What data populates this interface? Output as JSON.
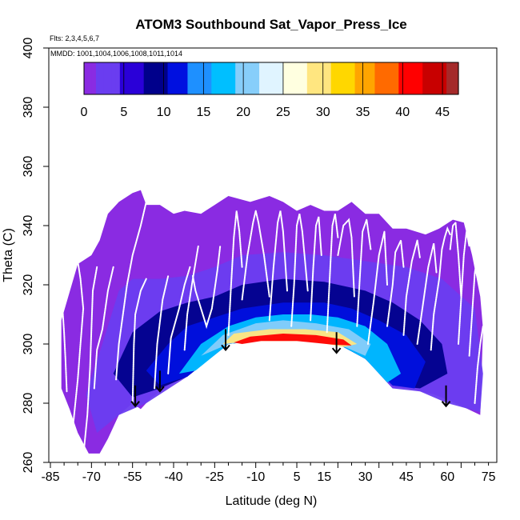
{
  "chart_data": {
    "type": "heatmap",
    "title": "ATOM3 Southbound Sat_Vapor_Press_Ice",
    "flights_note": "Flts: 2,3,4,5,6,7",
    "dates_note": "MMDD: 1001,1004,1006,1008,1011,1014",
    "xlabel": "Latitude (deg N)",
    "ylabel": "Theta (C)",
    "xlim": [
      -85,
      85
    ],
    "ylim": [
      260,
      400
    ],
    "x_ticks": [
      "-85",
      "-70",
      "-55",
      "-40",
      "-25",
      "-10",
      "5",
      "15",
      "30",
      "45",
      "60",
      "75"
    ],
    "y_ticks": [
      "260",
      "280",
      "300",
      "320",
      "340",
      "360",
      "380",
      "400"
    ],
    "colorbar": {
      "range": [
        0,
        47
      ],
      "ticks": [
        "0",
        "5",
        "10",
        "15",
        "20",
        "25",
        "30",
        "35",
        "40",
        "45"
      ],
      "colors": [
        "#8a2be2",
        "#6a3df0",
        "#2a00d8",
        "#00008b",
        "#0010e0",
        "#1e90ff",
        "#00bfff",
        "#87cefa",
        "#e0f4ff",
        "#ffffe0",
        "#ffe680",
        "#ffd700",
        "#ffa500",
        "#ff6a00",
        "#ff0000",
        "#c80000",
        "#a52a2a"
      ]
    },
    "domain_outline": [
      [
        -81,
        290
      ],
      [
        -81,
        308
      ],
      [
        -75,
        327
      ],
      [
        -70,
        330
      ],
      [
        -67,
        335
      ],
      [
        -64,
        344
      ],
      [
        -60,
        348
      ],
      [
        -55,
        351
      ],
      [
        -52,
        352
      ],
      [
        -50,
        347
      ],
      [
        -45,
        347
      ],
      [
        -40,
        344
      ],
      [
        -36,
        345
      ],
      [
        -30,
        344
      ],
      [
        -25,
        347
      ],
      [
        -20,
        350
      ],
      [
        -12,
        348
      ],
      [
        -5,
        350
      ],
      [
        0,
        348
      ],
      [
        5,
        345
      ],
      [
        10,
        347
      ],
      [
        15,
        345
      ],
      [
        20,
        345
      ],
      [
        25,
        348
      ],
      [
        30,
        344
      ],
      [
        35,
        344
      ],
      [
        40,
        339
      ],
      [
        45,
        339
      ],
      [
        52,
        337
      ],
      [
        57,
        339
      ],
      [
        62,
        342
      ],
      [
        66,
        341
      ],
      [
        69,
        330
      ],
      [
        72,
        316
      ],
      [
        73,
        305
      ],
      [
        72,
        276
      ],
      [
        63,
        280
      ],
      [
        55,
        283
      ],
      [
        45,
        285
      ],
      [
        40,
        285
      ],
      [
        35,
        290
      ],
      [
        28,
        298
      ],
      [
        20,
        300
      ],
      [
        10,
        302
      ],
      [
        0,
        302
      ],
      [
        -10,
        302
      ],
      [
        -20,
        300
      ],
      [
        -25,
        297
      ],
      [
        -30,
        293
      ],
      [
        -35,
        289
      ],
      [
        -40,
        287
      ],
      [
        -45,
        284
      ],
      [
        -48,
        282
      ],
      [
        -52,
        278
      ],
      [
        -55,
        280
      ],
      [
        -60,
        276
      ],
      [
        -64,
        268
      ],
      [
        -67,
        263
      ],
      [
        -71,
        263
      ],
      [
        -75,
        270
      ],
      [
        -78,
        278
      ],
      [
        -81,
        285
      ]
    ],
    "layers": [
      {
        "value": 4,
        "outline": [
          [
            -72,
            283
          ],
          [
            -66,
            300
          ],
          [
            -60,
            318
          ],
          [
            -55,
            322
          ],
          [
            -45,
            322
          ],
          [
            -35,
            323
          ],
          [
            -25,
            326
          ],
          [
            -15,
            330
          ],
          [
            0,
            331
          ],
          [
            15,
            330
          ],
          [
            30,
            328
          ],
          [
            45,
            326
          ],
          [
            58,
            322
          ],
          [
            70,
            312
          ],
          [
            73,
            290
          ],
          [
            72,
            277
          ],
          [
            60,
            280
          ],
          [
            50,
            284
          ],
          [
            40,
            285
          ],
          [
            30,
            295
          ],
          [
            20,
            300
          ],
          [
            0,
            302
          ],
          [
            -20,
            300
          ],
          [
            -35,
            289
          ],
          [
            -50,
            280
          ],
          [
            -60,
            276
          ],
          [
            -68,
            270
          ]
        ]
      },
      {
        "value": 9,
        "outline": [
          [
            -62,
            290
          ],
          [
            -55,
            304
          ],
          [
            -45,
            311
          ],
          [
            -35,
            314
          ],
          [
            -25,
            316
          ],
          [
            -15,
            320
          ],
          [
            0,
            322
          ],
          [
            15,
            321
          ],
          [
            30,
            318
          ],
          [
            40,
            314
          ],
          [
            50,
            308
          ],
          [
            58,
            300
          ],
          [
            60,
            290
          ],
          [
            50,
            285
          ],
          [
            40,
            286
          ],
          [
            30,
            295
          ],
          [
            20,
            300
          ],
          [
            0,
            302
          ],
          [
            -20,
            300
          ],
          [
            -35,
            289
          ],
          [
            -45,
            285
          ],
          [
            -55,
            282
          ]
        ]
      },
      {
        "value": 13,
        "outline": [
          [
            -50,
            291
          ],
          [
            -42,
            300
          ],
          [
            -35,
            306
          ],
          [
            -25,
            309
          ],
          [
            -15,
            312
          ],
          [
            0,
            314
          ],
          [
            15,
            314
          ],
          [
            25,
            312
          ],
          [
            35,
            308
          ],
          [
            45,
            303
          ],
          [
            52,
            294
          ],
          [
            48,
            285
          ],
          [
            40,
            286
          ],
          [
            30,
            295
          ],
          [
            20,
            300
          ],
          [
            0,
            302
          ],
          [
            -20,
            300
          ],
          [
            -35,
            289
          ],
          [
            -45,
            286
          ]
        ]
      },
      {
        "value": 17,
        "outline": [
          [
            -38,
            290
          ],
          [
            -30,
            300
          ],
          [
            -20,
            306
          ],
          [
            -10,
            309
          ],
          [
            0,
            310
          ],
          [
            10,
            310
          ],
          [
            20,
            309
          ],
          [
            30,
            306
          ],
          [
            38,
            300
          ],
          [
            43,
            290
          ],
          [
            38,
            287
          ],
          [
            30,
            295
          ],
          [
            20,
            300
          ],
          [
            0,
            302
          ],
          [
            -20,
            300
          ],
          [
            -32,
            291
          ]
        ]
      },
      {
        "value": 22,
        "outline": [
          [
            -30,
            296
          ],
          [
            -22,
            303
          ],
          [
            -10,
            307
          ],
          [
            0,
            308
          ],
          [
            12,
            307
          ],
          [
            24,
            305
          ],
          [
            32,
            300
          ],
          [
            30,
            296
          ],
          [
            20,
            300
          ],
          [
            0,
            302
          ],
          [
            -20,
            300
          ]
        ]
      },
      {
        "value": 30,
        "outline": [
          [
            -22,
            300
          ],
          [
            -18,
            303.5
          ],
          [
            -5,
            305
          ],
          [
            8,
            305
          ],
          [
            20,
            304
          ],
          [
            27,
            300
          ],
          [
            22,
            299
          ],
          [
            10,
            301
          ],
          [
            0,
            301
          ],
          [
            -12,
            301
          ]
        ]
      },
      {
        "value": 40,
        "outline": [
          [
            -18,
            300.5
          ],
          [
            -12,
            302.5
          ],
          [
            0,
            303.5
          ],
          [
            12,
            303
          ],
          [
            22,
            301.5
          ],
          [
            25,
            299.5
          ],
          [
            18,
            299.8
          ],
          [
            5,
            301
          ],
          [
            -8,
            301
          ],
          [
            -15,
            300
          ]
        ]
      }
    ],
    "profiles": [
      {
        "x": [
          -79,
          -79.5,
          -80,
          -80.5,
          -81
        ],
        "y": [
          284,
          295,
          304,
          311,
          318
        ]
      },
      {
        "x": [
          -77,
          -75,
          -74,
          -73,
          -74,
          -75
        ],
        "y": [
          270,
          288,
          300,
          312,
          322,
          328
        ]
      },
      {
        "x": [
          -73,
          -71.5,
          -70.5,
          -70,
          -69.5,
          -68
        ],
        "y": [
          262,
          276,
          292,
          305,
          318,
          326
        ]
      },
      {
        "x": [
          -69,
          -68,
          -66,
          -64,
          -62
        ],
        "y": [
          285,
          298,
          305,
          318,
          326
        ]
      },
      {
        "x": [
          -61,
          -60,
          -58.5,
          -57,
          -55,
          -52,
          -50,
          -49,
          -48
        ],
        "y": [
          288,
          300,
          310,
          320,
          330,
          340,
          348,
          350,
          352
        ]
      },
      {
        "x": [
          -55,
          -54.5,
          -54,
          -52,
          -50
        ],
        "y": [
          280,
          300,
          310,
          318,
          322
        ]
      },
      {
        "x": [
          -47,
          -46,
          -44,
          -42
        ],
        "y": [
          285,
          300,
          315,
          323
        ]
      },
      {
        "x": [
          -42,
          -41,
          -38,
          -36,
          -34
        ],
        "y": [
          290,
          302,
          312,
          320,
          326
        ]
      },
      {
        "x": [
          -36,
          -35,
          -33,
          -31
        ],
        "y": [
          298,
          310,
          322,
          333
        ]
      },
      {
        "x": [
          -33,
          -32,
          -30,
          -28,
          -26,
          -24,
          -23
        ],
        "y": [
          323,
          318,
          312,
          306,
          312,
          325,
          333
        ]
      },
      {
        "x": [
          -20,
          -19,
          -18,
          -17,
          -16,
          -15
        ],
        "y": [
          303,
          320,
          336,
          345,
          338,
          326
        ]
      },
      {
        "x": [
          -15,
          -13,
          -11,
          -10,
          -9,
          -7,
          -5
        ],
        "y": [
          315,
          330,
          341,
          345,
          341,
          330,
          316
        ]
      },
      {
        "x": [
          -5,
          -3.5,
          -2,
          -1,
          0,
          1.5
        ],
        "y": [
          308,
          326,
          341,
          345,
          338,
          318
        ]
      },
      {
        "x": [
          3,
          4,
          5,
          6,
          7,
          9
        ],
        "y": [
          306,
          320,
          340,
          344,
          338,
          318
        ]
      },
      {
        "x": [
          10,
          11,
          12,
          13,
          14
        ],
        "y": [
          308,
          326,
          340,
          343,
          330
        ]
      },
      {
        "x": [
          16,
          17,
          18,
          19,
          20
        ],
        "y": [
          304,
          322,
          340,
          344,
          336
        ]
      },
      {
        "x": [
          20,
          22,
          24,
          25,
          26
        ],
        "y": [
          330,
          340,
          342,
          336,
          316
        ]
      },
      {
        "x": [
          27,
          28,
          29,
          30.5,
          32
        ],
        "y": [
          306,
          322,
          338,
          342,
          332
        ]
      },
      {
        "x": [
          31,
          33,
          35,
          37,
          38
        ],
        "y": [
          300,
          314,
          330,
          338,
          320
        ]
      },
      {
        "x": [
          38,
          40,
          41,
          43,
          44
        ],
        "y": [
          306,
          320,
          331,
          335,
          326
        ]
      },
      {
        "x": [
          44,
          45,
          47,
          49,
          50
        ],
        "y": [
          303,
          316,
          328,
          335,
          329
        ]
      },
      {
        "x": [
          49,
          51,
          53,
          55,
          56
        ],
        "y": [
          300,
          313,
          326,
          334,
          324
        ]
      },
      {
        "x": [
          54,
          55,
          57,
          58,
          59,
          60,
          61
        ],
        "y": [
          298,
          310,
          322,
          332,
          336,
          339,
          337
        ]
      },
      {
        "x": [
          61,
          62,
          63,
          64,
          65
        ],
        "y": [
          332,
          340,
          341,
          330,
          316
        ]
      },
      {
        "x": [
          64,
          65,
          66,
          67,
          68
        ],
        "y": [
          300,
          315,
          330,
          338,
          333
        ]
      },
      {
        "x": [
          68,
          69,
          70,
          71,
          72
        ],
        "y": [
          296,
          310,
          324,
          330,
          320
        ]
      },
      {
        "x": [
          70,
          71,
          72,
          73
        ],
        "y": [
          280,
          292,
          300,
          306
        ]
      }
    ],
    "arrows": [
      {
        "x": -54,
        "y_top": 286,
        "y_tip": 279
      },
      {
        "x": -45,
        "y_top": 291,
        "y_tip": 284
      },
      {
        "x": -21,
        "y_top": 305,
        "y_tip": 298
      },
      {
        "x": 19.5,
        "y_top": 304,
        "y_tip": 297
      },
      {
        "x": 59.5,
        "y_top": 286,
        "y_tip": 279
      }
    ]
  }
}
